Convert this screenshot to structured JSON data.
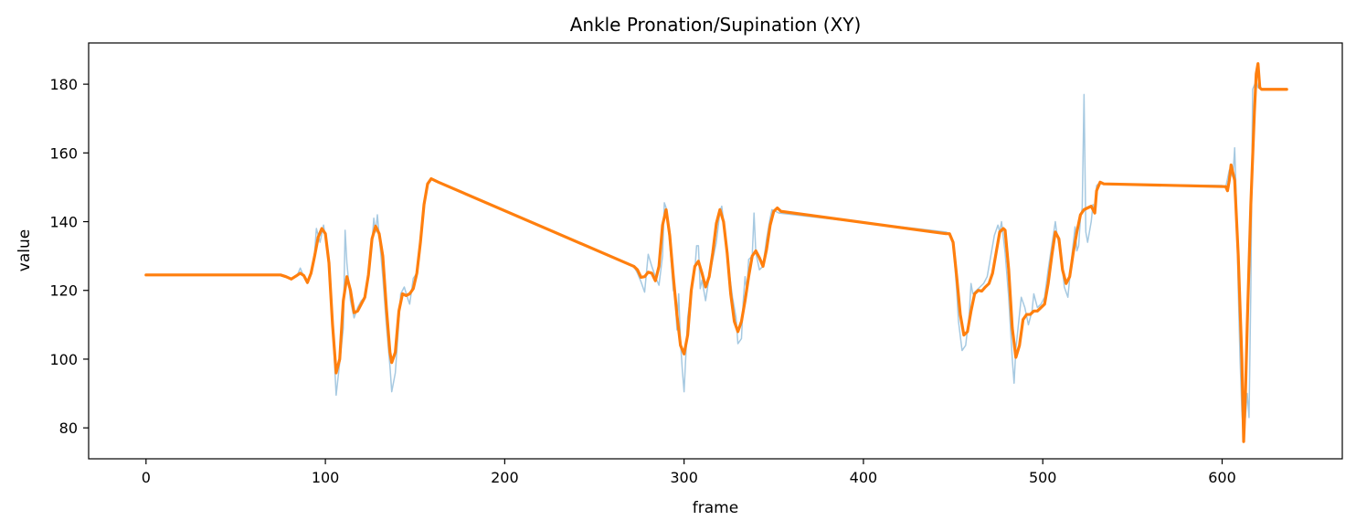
{
  "chart_data": {
    "type": "line",
    "title": "Ankle Pronation/Supination (XY)",
    "xlabel": "frame",
    "ylabel": "value",
    "xlim": [
      -32,
      667
    ],
    "ylim": [
      71,
      192
    ],
    "xticks": [
      0,
      100,
      200,
      300,
      400,
      500,
      600
    ],
    "yticks": [
      80,
      100,
      120,
      140,
      160,
      180
    ],
    "grid": false,
    "series": [
      {
        "color": "#a6c9e1",
        "style": "raw-thin",
        "points": [
          [
            0,
            124.5
          ],
          [
            76,
            124.5
          ],
          [
            80,
            123.5
          ],
          [
            84,
            124
          ],
          [
            86,
            126.5
          ],
          [
            88,
            124
          ],
          [
            90,
            122
          ],
          [
            92,
            124.5
          ],
          [
            94,
            131
          ],
          [
            95,
            138
          ],
          [
            97,
            134
          ],
          [
            99,
            139
          ],
          [
            101,
            132
          ],
          [
            103,
            121
          ],
          [
            105,
            100
          ],
          [
            106,
            89.5
          ],
          [
            108,
            99
          ],
          [
            110,
            109
          ],
          [
            111,
            137.5
          ],
          [
            112,
            128
          ],
          [
            114,
            117
          ],
          [
            116,
            112
          ],
          [
            118,
            115
          ],
          [
            120,
            117
          ],
          [
            122,
            118
          ],
          [
            124,
            125
          ],
          [
            126,
            134
          ],
          [
            127,
            141
          ],
          [
            128,
            137
          ],
          [
            129,
            142
          ],
          [
            130,
            136
          ],
          [
            132,
            124
          ],
          [
            134,
            110
          ],
          [
            136,
            98
          ],
          [
            137,
            90.5
          ],
          [
            139,
            96
          ],
          [
            141,
            111
          ],
          [
            142,
            119
          ],
          [
            144,
            121
          ],
          [
            146,
            117.5
          ],
          [
            147,
            116
          ],
          [
            149,
            123.5
          ],
          [
            151,
            125
          ],
          [
            153,
            133
          ],
          [
            155,
            145
          ],
          [
            157,
            151
          ],
          [
            159,
            152.5
          ],
          [
            161,
            152
          ],
          [
            163,
            151.5
          ],
          [
            272,
            127
          ],
          [
            274,
            125
          ],
          [
            276,
            122.5
          ],
          [
            278,
            119.5
          ],
          [
            279,
            125
          ],
          [
            280,
            130.5
          ],
          [
            282,
            127
          ],
          [
            284,
            124
          ],
          [
            286,
            121.5
          ],
          [
            288,
            130
          ],
          [
            289,
            145.5
          ],
          [
            290,
            144
          ],
          [
            292,
            134
          ],
          [
            294,
            120
          ],
          [
            295,
            119
          ],
          [
            296,
            108.5
          ],
          [
            297,
            119
          ],
          [
            298,
            105
          ],
          [
            299,
            97
          ],
          [
            300,
            90.5
          ],
          [
            302,
            112
          ],
          [
            304,
            120
          ],
          [
            306,
            126
          ],
          [
            307,
            133
          ],
          [
            308,
            133
          ],
          [
            309,
            120.5
          ],
          [
            310,
            123
          ],
          [
            312,
            117
          ],
          [
            314,
            124
          ],
          [
            316,
            129
          ],
          [
            318,
            134
          ],
          [
            320,
            143
          ],
          [
            321,
            144.5
          ],
          [
            323,
            136
          ],
          [
            325,
            126
          ],
          [
            327,
            118
          ],
          [
            329,
            112
          ],
          [
            330,
            104.5
          ],
          [
            332,
            106
          ],
          [
            333,
            117
          ],
          [
            334,
            124
          ],
          [
            335,
            120
          ],
          [
            336,
            129
          ],
          [
            338,
            130
          ],
          [
            339,
            142.5
          ],
          [
            340,
            131
          ],
          [
            342,
            126
          ],
          [
            344,
            127
          ],
          [
            346,
            135
          ],
          [
            348,
            141
          ],
          [
            349,
            143.5
          ],
          [
            351,
            143
          ],
          [
            353,
            142.5
          ],
          [
            446,
            137
          ],
          [
            448,
            136.5
          ],
          [
            450,
            134
          ],
          [
            452,
            120
          ],
          [
            453,
            111
          ],
          [
            455,
            102.5
          ],
          [
            457,
            104
          ],
          [
            459,
            113
          ],
          [
            460,
            122
          ],
          [
            461,
            119
          ],
          [
            463,
            120
          ],
          [
            465,
            121
          ],
          [
            467,
            122
          ],
          [
            469,
            124
          ],
          [
            471,
            130
          ],
          [
            473,
            136
          ],
          [
            475,
            139
          ],
          [
            476,
            137
          ],
          [
            477,
            140
          ],
          [
            479,
            131
          ],
          [
            481,
            118
          ],
          [
            483,
            100
          ],
          [
            484,
            93
          ],
          [
            485,
            103
          ],
          [
            487,
            113
          ],
          [
            488,
            118
          ],
          [
            490,
            115
          ],
          [
            492,
            110
          ],
          [
            494,
            114
          ],
          [
            495,
            119
          ],
          [
            497,
            115
          ],
          [
            499,
            116
          ],
          [
            501,
            118
          ],
          [
            503,
            126
          ],
          [
            505,
            133
          ],
          [
            507,
            140
          ],
          [
            508,
            136
          ],
          [
            510,
            131
          ],
          [
            512,
            121
          ],
          [
            514,
            118
          ],
          [
            516,
            129
          ],
          [
            518,
            138.5
          ],
          [
            519,
            131.5
          ],
          [
            520,
            133
          ],
          [
            521,
            141
          ],
          [
            522,
            144
          ],
          [
            523,
            177
          ],
          [
            524,
            137
          ],
          [
            525,
            134
          ],
          [
            526,
            137
          ],
          [
            527,
            140
          ],
          [
            528,
            145
          ],
          [
            529,
            143
          ],
          [
            530,
            150.5
          ],
          [
            532,
            151.5
          ],
          [
            534,
            151
          ],
          [
            600,
            150.5
          ],
          [
            602,
            150
          ],
          [
            604,
            155
          ],
          [
            606,
            153
          ],
          [
            607,
            161.5
          ],
          [
            608,
            145
          ],
          [
            609,
            120
          ],
          [
            610,
            100
          ],
          [
            611,
            85
          ],
          [
            612,
            77
          ],
          [
            614,
            90
          ],
          [
            615,
            83
          ],
          [
            616,
            120
          ],
          [
            617,
            178.5
          ],
          [
            619,
            181
          ],
          [
            620,
            179
          ],
          [
            622,
            178.5
          ],
          [
            636,
            178.5
          ]
        ]
      },
      {
        "color": "#ff7f0e",
        "style": "smoothed-thick",
        "points": [
          [
            0,
            124.5
          ],
          [
            75,
            124.5
          ],
          [
            78,
            124
          ],
          [
            81,
            123.3
          ],
          [
            84,
            124.3
          ],
          [
            86,
            125
          ],
          [
            88,
            124.3
          ],
          [
            90,
            122.3
          ],
          [
            92,
            125
          ],
          [
            94,
            130
          ],
          [
            96,
            135.5
          ],
          [
            98,
            138
          ],
          [
            100,
            136.5
          ],
          [
            102,
            128
          ],
          [
            104,
            110
          ],
          [
            106,
            96
          ],
          [
            108,
            100
          ],
          [
            110,
            117
          ],
          [
            112,
            124
          ],
          [
            114,
            120
          ],
          [
            116,
            113.5
          ],
          [
            118,
            114
          ],
          [
            120,
            116
          ],
          [
            122,
            118
          ],
          [
            124,
            124.5
          ],
          [
            126,
            135
          ],
          [
            128,
            138.7
          ],
          [
            130,
            136.5
          ],
          [
            132,
            130
          ],
          [
            134,
            115
          ],
          [
            136,
            102
          ],
          [
            137,
            99
          ],
          [
            139,
            102
          ],
          [
            141,
            114
          ],
          [
            143,
            119
          ],
          [
            145,
            118.5
          ],
          [
            147,
            119
          ],
          [
            149,
            120.5
          ],
          [
            151,
            125
          ],
          [
            153,
            134
          ],
          [
            155,
            145
          ],
          [
            157,
            151
          ],
          [
            159,
            152.5
          ],
          [
            161,
            152
          ],
          [
            163,
            151.5
          ],
          [
            272,
            127
          ],
          [
            274,
            126
          ],
          [
            276,
            123.8
          ],
          [
            278,
            124
          ],
          [
            280,
            125.3
          ],
          [
            282,
            125
          ],
          [
            284,
            122.8
          ],
          [
            286,
            127
          ],
          [
            288,
            139
          ],
          [
            290,
            143.5
          ],
          [
            292,
            136
          ],
          [
            294,
            124
          ],
          [
            296,
            113
          ],
          [
            298,
            104
          ],
          [
            300,
            101.5
          ],
          [
            302,
            107
          ],
          [
            304,
            120
          ],
          [
            306,
            127
          ],
          [
            308,
            128.5
          ],
          [
            310,
            125
          ],
          [
            312,
            121
          ],
          [
            314,
            124
          ],
          [
            316,
            131
          ],
          [
            318,
            139.5
          ],
          [
            320,
            143.5
          ],
          [
            322,
            140
          ],
          [
            324,
            131
          ],
          [
            326,
            119
          ],
          [
            328,
            111
          ],
          [
            330,
            108
          ],
          [
            332,
            111
          ],
          [
            334,
            117
          ],
          [
            336,
            124
          ],
          [
            338,
            130
          ],
          [
            340,
            131.5
          ],
          [
            342,
            129.5
          ],
          [
            344,
            127
          ],
          [
            346,
            132
          ],
          [
            348,
            139
          ],
          [
            350,
            143
          ],
          [
            352,
            144
          ],
          [
            354,
            143
          ],
          [
            446,
            136.5
          ],
          [
            448,
            136.5
          ],
          [
            450,
            134
          ],
          [
            452,
            124
          ],
          [
            454,
            113
          ],
          [
            456,
            107
          ],
          [
            458,
            108
          ],
          [
            460,
            114
          ],
          [
            462,
            119
          ],
          [
            464,
            120
          ],
          [
            466,
            119.8
          ],
          [
            468,
            121
          ],
          [
            470,
            122
          ],
          [
            472,
            125
          ],
          [
            474,
            131
          ],
          [
            476,
            137
          ],
          [
            478,
            138
          ],
          [
            479,
            137.5
          ],
          [
            481,
            126
          ],
          [
            483,
            109
          ],
          [
            485,
            100.5
          ],
          [
            487,
            104
          ],
          [
            489,
            111.5
          ],
          [
            491,
            113
          ],
          [
            493,
            113
          ],
          [
            495,
            114
          ],
          [
            497,
            114
          ],
          [
            499,
            115
          ],
          [
            501,
            116
          ],
          [
            503,
            122
          ],
          [
            505,
            130
          ],
          [
            507,
            137
          ],
          [
            509,
            135
          ],
          [
            511,
            126
          ],
          [
            513,
            122
          ],
          [
            515,
            124
          ],
          [
            517,
            131
          ],
          [
            519,
            137
          ],
          [
            521,
            142
          ],
          [
            523,
            143.5
          ],
          [
            525,
            144
          ],
          [
            527,
            144.5
          ],
          [
            529,
            142.5
          ],
          [
            530,
            149
          ],
          [
            532,
            151.5
          ],
          [
            534,
            151
          ],
          [
            602,
            150.2
          ],
          [
            603,
            149
          ],
          [
            604,
            152
          ],
          [
            605,
            156.5
          ],
          [
            607,
            152
          ],
          [
            609,
            130
          ],
          [
            611,
            100
          ],
          [
            612,
            76
          ],
          [
            613,
            90
          ],
          [
            614,
            110
          ],
          [
            616,
            145
          ],
          [
            618,
            172
          ],
          [
            619,
            183
          ],
          [
            620,
            186
          ],
          [
            621,
            179
          ],
          [
            622,
            178.5
          ],
          [
            636,
            178.5
          ]
        ]
      }
    ]
  }
}
